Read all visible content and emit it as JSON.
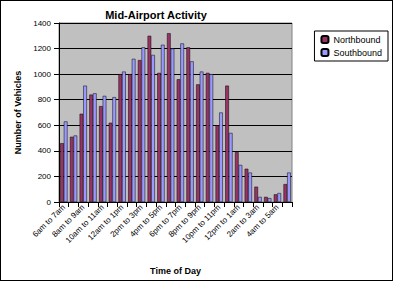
{
  "chart_data": {
    "type": "bar",
    "title": "Mid-Airport Activity",
    "x_label": "Time of Day",
    "y_label": "Number of Vehicles",
    "categories": [
      "6am to 7am",
      null,
      "8am to 9am",
      null,
      "10am to 11am",
      null,
      "12am to 1pm",
      null,
      "2pm to 3pm",
      null,
      "4pm to 5pm",
      null,
      "6pm to 7pm",
      null,
      "8pm to 9pm",
      null,
      "10pm to 11pm",
      null,
      "12pm to 1am",
      null,
      "2am to 3am",
      null,
      "4am to 5am",
      null
    ],
    "series": [
      {
        "name": "Northbound",
        "color": "#993366",
        "values": [
          460,
          510,
          690,
          840,
          750,
          620,
          1000,
          1000,
          1110,
          1300,
          1010,
          1320,
          960,
          1210,
          920,
          1010,
          600,
          910,
          390,
          260,
          120,
          40,
          60,
          140
        ]
      },
      {
        "name": "Southbound",
        "color": "#9999ff",
        "values": [
          630,
          520,
          910,
          850,
          830,
          820,
          1020,
          1120,
          1210,
          1150,
          1230,
          1200,
          1240,
          1100,
          1020,
          1000,
          700,
          540,
          290,
          230,
          40,
          30,
          70,
          230
        ]
      }
    ],
    "ylim": [
      0,
      1400
    ],
    "yticks": [
      0,
      200,
      400,
      600,
      800,
      1000,
      1200,
      1400
    ],
    "grid": true,
    "legend": "upper right"
  }
}
